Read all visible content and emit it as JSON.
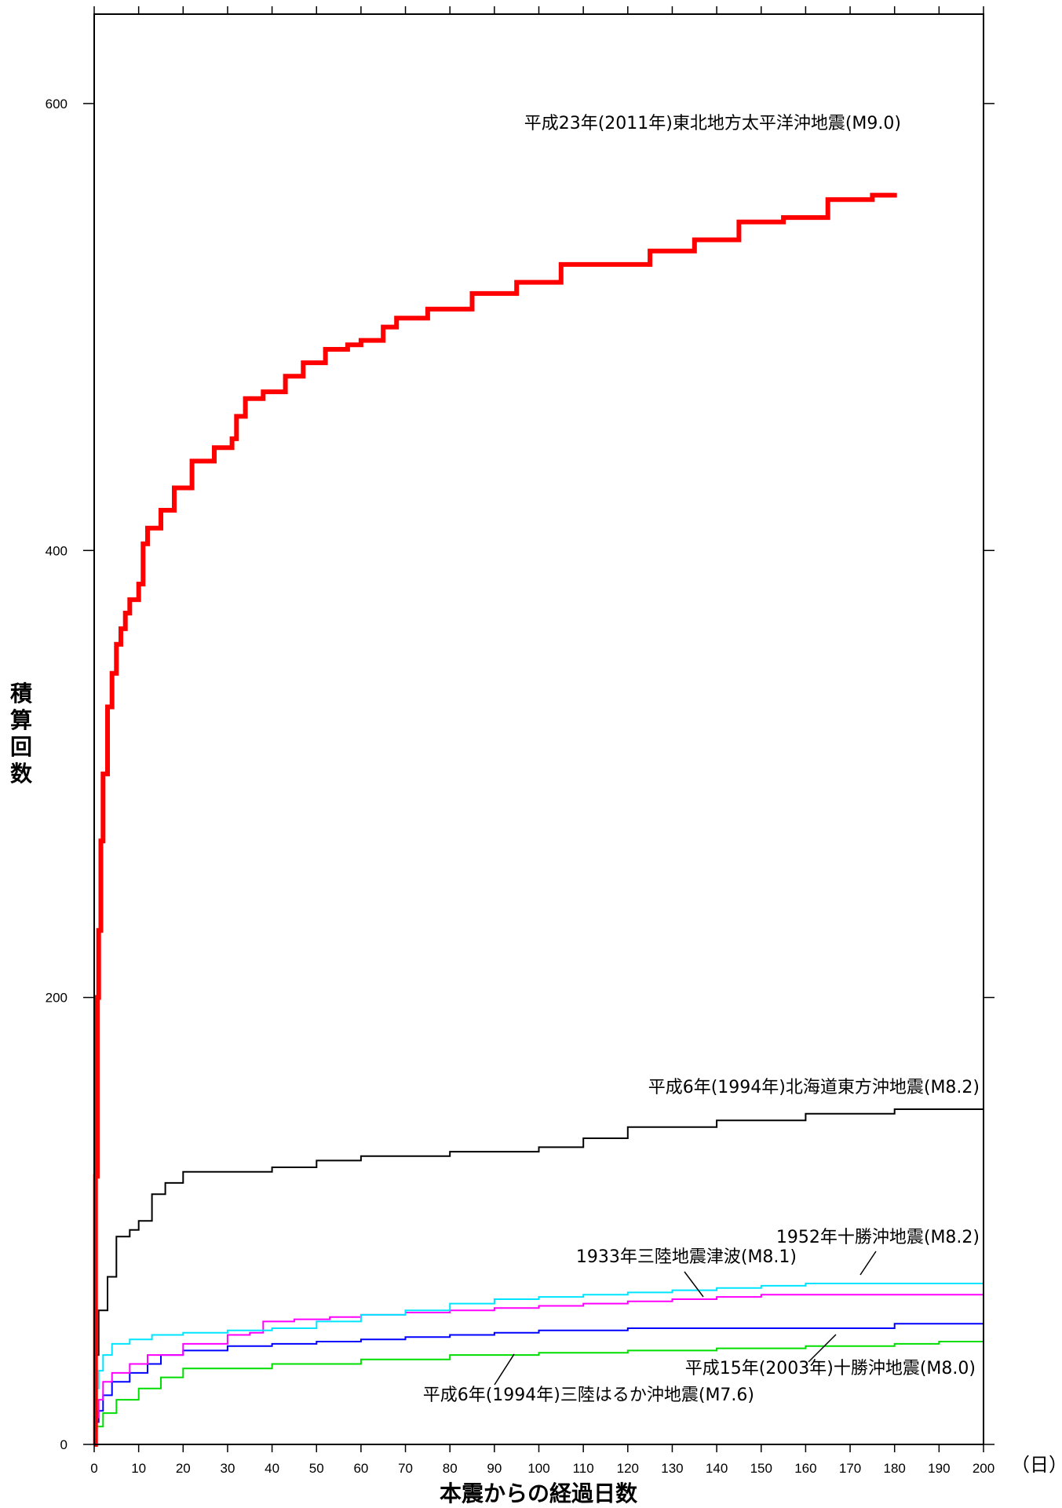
{
  "chart_data": {
    "type": "line",
    "title": "",
    "xlabel": "本震からの経過日数",
    "xunit": "（日）",
    "ylabel": "積算回数",
    "xlim": [
      0,
      200
    ],
    "ylim": [
      0,
      600
    ],
    "grid": false,
    "x_ticks": [
      0,
      10,
      20,
      30,
      40,
      50,
      60,
      70,
      80,
      90,
      100,
      110,
      120,
      130,
      140,
      150,
      160,
      170,
      180,
      190,
      200
    ],
    "y_ticks": [
      0,
      200,
      400,
      600
    ],
    "series": [
      {
        "name": "平成23年(2011年)東北地方太平洋沖地震(M9.0)",
        "color": "#ff0000",
        "points": [
          [
            0,
            0
          ],
          [
            0.3,
            120
          ],
          [
            0.7,
            200
          ],
          [
            1,
            230
          ],
          [
            1.5,
            270
          ],
          [
            2,
            300
          ],
          [
            3,
            330
          ],
          [
            4,
            345
          ],
          [
            5,
            358
          ],
          [
            6,
            365
          ],
          [
            7,
            372
          ],
          [
            8,
            378
          ],
          [
            10,
            385
          ],
          [
            11,
            403
          ],
          [
            12,
            410
          ],
          [
            15,
            418
          ],
          [
            18,
            428
          ],
          [
            22,
            440
          ],
          [
            27,
            446
          ],
          [
            31,
            450
          ],
          [
            32,
            460
          ],
          [
            34,
            468
          ],
          [
            38,
            471
          ],
          [
            42,
            471
          ],
          [
            43,
            478
          ],
          [
            47,
            484
          ],
          [
            52,
            490
          ],
          [
            57,
            492
          ],
          [
            60,
            494
          ],
          [
            65,
            500
          ],
          [
            68,
            504
          ],
          [
            75,
            508
          ],
          [
            85,
            515
          ],
          [
            95,
            520
          ],
          [
            105,
            528
          ],
          [
            115,
            528
          ],
          [
            125,
            534
          ],
          [
            135,
            539
          ],
          [
            145,
            547
          ],
          [
            155,
            549
          ],
          [
            165,
            557
          ],
          [
            175,
            559
          ],
          [
            180,
            560
          ]
        ]
      },
      {
        "name": "平成6年(1994年)北海道東方沖地震(M8.2)",
        "color": "#000000",
        "points": [
          [
            0,
            0
          ],
          [
            0.3,
            40
          ],
          [
            1,
            60
          ],
          [
            3,
            75
          ],
          [
            5,
            93
          ],
          [
            8,
            96
          ],
          [
            10,
            100
          ],
          [
            13,
            112
          ],
          [
            16,
            117
          ],
          [
            20,
            122
          ],
          [
            40,
            124
          ],
          [
            50,
            127
          ],
          [
            60,
            129
          ],
          [
            80,
            131
          ],
          [
            100,
            133
          ],
          [
            110,
            137
          ],
          [
            120,
            142
          ],
          [
            140,
            145
          ],
          [
            160,
            148
          ],
          [
            180,
            150
          ],
          [
            200,
            155
          ]
        ]
      },
      {
        "name": "1952年十勝沖地震(M8.2)",
        "color": "#00e5ff",
        "points": [
          [
            0,
            0
          ],
          [
            0.5,
            25
          ],
          [
            1,
            33
          ],
          [
            2,
            40
          ],
          [
            4,
            45
          ],
          [
            8,
            47
          ],
          [
            13,
            49
          ],
          [
            20,
            50
          ],
          [
            30,
            51
          ],
          [
            40,
            52
          ],
          [
            50,
            55
          ],
          [
            60,
            58
          ],
          [
            70,
            60
          ],
          [
            80,
            63
          ],
          [
            90,
            65
          ],
          [
            100,
            66
          ],
          [
            110,
            67
          ],
          [
            120,
            68
          ],
          [
            130,
            69
          ],
          [
            140,
            70
          ],
          [
            150,
            71
          ],
          [
            160,
            72
          ],
          [
            170,
            72
          ],
          [
            180,
            72
          ],
          [
            200,
            72
          ]
        ]
      },
      {
        "name": "1933年三陸地震津波(M8.1)",
        "color": "#ff00ff",
        "points": [
          [
            0,
            0
          ],
          [
            0.5,
            12
          ],
          [
            1,
            20
          ],
          [
            2,
            28
          ],
          [
            4,
            32
          ],
          [
            8,
            36
          ],
          [
            12,
            40
          ],
          [
            20,
            45
          ],
          [
            30,
            49
          ],
          [
            35,
            50
          ],
          [
            38,
            55
          ],
          [
            45,
            56
          ],
          [
            53,
            57
          ],
          [
            60,
            58
          ],
          [
            70,
            59
          ],
          [
            80,
            60
          ],
          [
            90,
            61
          ],
          [
            100,
            62
          ],
          [
            110,
            63
          ],
          [
            120,
            64
          ],
          [
            130,
            65
          ],
          [
            140,
            66
          ],
          [
            150,
            67
          ],
          [
            170,
            67
          ],
          [
            190,
            67
          ],
          [
            200,
            68
          ]
        ]
      },
      {
        "name": "平成15年(2003年)十勝沖地震(M8.0)",
        "color": "#0000ff",
        "points": [
          [
            0,
            0
          ],
          [
            0.5,
            10
          ],
          [
            1,
            15
          ],
          [
            2,
            22
          ],
          [
            4,
            28
          ],
          [
            8,
            32
          ],
          [
            12,
            36
          ],
          [
            15,
            40
          ],
          [
            20,
            42
          ],
          [
            30,
            44
          ],
          [
            40,
            45
          ],
          [
            50,
            46
          ],
          [
            60,
            47
          ],
          [
            70,
            48
          ],
          [
            80,
            49
          ],
          [
            90,
            50
          ],
          [
            100,
            51
          ],
          [
            110,
            51
          ],
          [
            120,
            52
          ],
          [
            140,
            52
          ],
          [
            160,
            52
          ],
          [
            180,
            54
          ],
          [
            200,
            56
          ]
        ]
      },
      {
        "name": "平成6年(1994年)三陸はるか沖地震(M7.6)",
        "color": "#00dd00",
        "points": [
          [
            0,
            0
          ],
          [
            0.5,
            8
          ],
          [
            2,
            14
          ],
          [
            5,
            20
          ],
          [
            10,
            25
          ],
          [
            15,
            30
          ],
          [
            20,
            34
          ],
          [
            40,
            36
          ],
          [
            60,
            38
          ],
          [
            80,
            40
          ],
          [
            100,
            41
          ],
          [
            120,
            42
          ],
          [
            140,
            43
          ],
          [
            160,
            44
          ],
          [
            180,
            45
          ],
          [
            190,
            46
          ],
          [
            200,
            50
          ]
        ]
      }
    ],
    "annotations": [
      {
        "text": "平成23年(2011年)東北地方太平洋沖地震(M9.0)",
        "series": 0
      },
      {
        "text": "平成6年(1994年)北海道東方沖地震(M8.2)",
        "series": 1
      },
      {
        "text": "1952年十勝沖地震(M8.2)",
        "series": 2
      },
      {
        "text": "1933年三陸地震津波(M8.1)",
        "series": 3
      },
      {
        "text": "平成15年(2003年)十勝沖地震(M8.0)",
        "series": 4
      },
      {
        "text": "平成6年(1994年)三陸はるか沖地震(M7.6)",
        "series": 5
      }
    ]
  }
}
